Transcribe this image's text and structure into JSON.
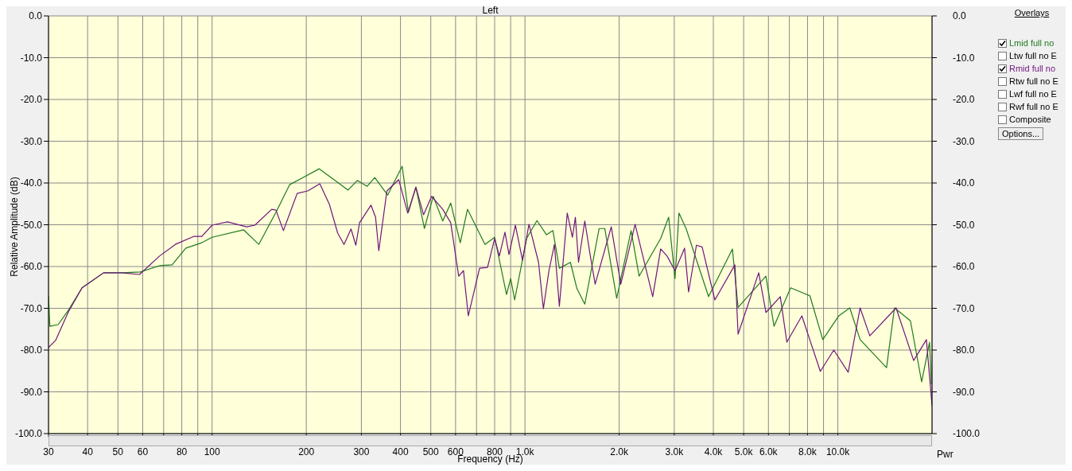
{
  "chart_data": {
    "type": "line",
    "title": "Left",
    "xlabel": "Frequency (Hz)",
    "ylabel": "Relative Amplitude (dB)",
    "y2label": "Pwr",
    "legend_title": "Overlays",
    "legend": "right",
    "log": "x",
    "grid": true,
    "marker": "none",
    "line_style": "solid",
    "xlim": [
      30,
      20000
    ],
    "xticks": [
      30,
      40,
      50,
      60,
      {
        "value": 70,
        "label": null
      },
      80,
      {
        "value": 90,
        "label": null
      },
      100,
      200,
      300,
      400,
      500,
      600,
      {
        "value": 700,
        "label": null
      },
      800,
      {
        "value": 900,
        "label": null
      },
      {
        "value": 1000,
        "label": "1.0k"
      },
      {
        "value": 2000,
        "label": "2.0k"
      },
      {
        "value": 3000,
        "label": "3.0k"
      },
      {
        "value": 4000,
        "label": "4.0k"
      },
      {
        "value": 5000,
        "label": "5.0k"
      },
      {
        "value": 6000,
        "label": "6.0k"
      },
      {
        "value": 7000,
        "label": null
      },
      {
        "value": 8000,
        "label": "8.0k"
      },
      {
        "value": 9000,
        "label": null
      },
      {
        "value": 10000,
        "label": "10.0k"
      }
    ],
    "ylim": [
      -100,
      0
    ],
    "yticks": [
      {
        "value": 0,
        "label": "0.0"
      },
      {
        "value": -10,
        "label": "-10.0"
      },
      {
        "value": -20,
        "label": "-20.0"
      },
      {
        "value": -30,
        "label": "-30.0"
      },
      {
        "value": -40,
        "label": "-40.0"
      },
      {
        "value": -50,
        "label": "-50.0"
      },
      {
        "value": -60,
        "label": "-60.0"
      },
      {
        "value": -70,
        "label": "-70.0"
      },
      {
        "value": -80,
        "label": "-80.0"
      },
      {
        "value": -90,
        "label": "-90.0"
      },
      {
        "value": -100,
        "label": "-100.0"
      }
    ],
    "y2lim": [
      -100,
      0
    ],
    "y2ticks": [
      {
        "value": 0,
        "label": "0.0"
      },
      {
        "value": -10,
        "label": "-10.0"
      },
      {
        "value": -20,
        "label": "-20.0"
      },
      {
        "value": -30,
        "label": "-30.0"
      },
      {
        "value": -40,
        "label": "-40.0"
      },
      {
        "value": -50,
        "label": "-50.0"
      },
      {
        "value": -60,
        "label": "-60.0"
      },
      {
        "value": -70,
        "label": "-70.0"
      },
      {
        "value": -80,
        "label": "-80.0"
      },
      {
        "value": -90,
        "label": "-90.0"
      },
      {
        "value": -100,
        "label": "-100.0"
      }
    ],
    "annotations": [
      "Ltw full no E",
      "Rtw full no E",
      "Lwf full no E",
      "Rwf full no E",
      "Composite",
      "Options..."
    ],
    "series": [
      {
        "name": "Lmid full no",
        "color": "#1f7a1f",
        "x": [
          30,
          30.3,
          32.2,
          34.7,
          38.4,
          45,
          51.5,
          58.9,
          67.9,
          74.5,
          82.4,
          92.7,
          100,
          126,
          141,
          160,
          177,
          195,
          220,
          247,
          272,
          291,
          313,
          331,
          364,
          405,
          424,
          448,
          477,
          509,
          546,
          579,
          621,
          655,
          745,
          800,
          873,
          900,
          927,
          1012,
          1092,
          1172,
          1228,
          1288,
          1397,
          1466,
          1553,
          1726,
          1799,
          1964,
          2183,
          2317,
          2715,
          2879,
          3017,
          3106,
          3273,
          3862,
          4603,
          4799,
          5891,
          6252,
          7066,
          8141,
          8950,
          10070,
          10920,
          11780,
          14310,
          15170,
          17060,
          18530,
          19640,
          19900
        ],
        "values": [
          -67,
          -74.3,
          -73.9,
          -70.5,
          -65.1,
          -61.5,
          -61.5,
          -61.3,
          -59.8,
          -59.6,
          -55.6,
          -54.3,
          -53,
          -51.2,
          -54.7,
          -47,
          -40.4,
          -38.7,
          -36.6,
          -39.4,
          -41.7,
          -39.4,
          -40.8,
          -38.7,
          -42.9,
          -36,
          -47,
          -41,
          -50.9,
          -43.2,
          -49.1,
          -44.8,
          -54.3,
          -46.3,
          -54.7,
          -53,
          -66.7,
          -62.9,
          -68,
          -53.3,
          -49,
          -52.4,
          -51.4,
          -60.4,
          -59,
          -65.3,
          -69,
          -50.9,
          -50.9,
          -67.6,
          -51.4,
          -62.3,
          -53.3,
          -48.2,
          -62.9,
          -47.2,
          -50.9,
          -67.2,
          -55.8,
          -69.8,
          -62.3,
          -74.3,
          -65.1,
          -67,
          -77.5,
          -71.8,
          -69.9,
          -77.5,
          -84.2,
          -69.9,
          -73,
          -87.6,
          -78.1,
          -88.2
        ]
      },
      {
        "name": "Rmid full no",
        "color": "#70167e",
        "x": [
          30,
          31.6,
          34.7,
          38.4,
          45,
          51.5,
          58.6,
          67.9,
          76.3,
          87.3,
          92.7,
          100,
          112,
          129,
          137,
          155,
          160,
          169,
          187,
          202,
          221,
          237,
          252,
          264,
          278,
          288,
          296,
          322,
          333,
          341,
          362,
          395,
          422,
          448,
          474,
          503,
          546,
          579,
          614,
          636,
          659,
          716,
          759,
          800,
          828,
          863,
          889,
          932,
          982,
          1030,
          1105,
          1145,
          1193,
          1242,
          1288,
          1365,
          1418,
          1449,
          1483,
          1553,
          1618,
          1676,
          1887,
          2024,
          2249,
          2560,
          2715,
          2846,
          3017,
          3236,
          3334,
          3532,
          3683,
          4045,
          4688,
          4799,
          5585,
          5891,
          6547,
          6871,
          7674,
          8790,
          9705,
          10790,
          11780,
          12650,
          15350,
          17470,
          19190,
          20000
        ],
        "values": [
          -79.4,
          -77.7,
          -70.9,
          -65.1,
          -61.5,
          -61.5,
          -61.9,
          -57.5,
          -54.7,
          -52.8,
          -52.8,
          -50.1,
          -49.3,
          -50.5,
          -50.1,
          -46.3,
          -46.5,
          -51.4,
          -42.5,
          -41.9,
          -40.2,
          -45.1,
          -52,
          -54.7,
          -51,
          -54.9,
          -49.5,
          -45.3,
          -48.2,
          -56.2,
          -41.9,
          -39.2,
          -47.2,
          -41,
          -47.6,
          -43.2,
          -46.3,
          -49.5,
          -62.3,
          -61,
          -71.8,
          -60.4,
          -60.2,
          -53.3,
          -57.5,
          -51.8,
          -57.1,
          -50.1,
          -58.5,
          -49.9,
          -59,
          -70.1,
          -61,
          -54.7,
          -69.5,
          -47.2,
          -53,
          -48.2,
          -59,
          -49.1,
          -57.5,
          -64.2,
          -50.5,
          -64.2,
          -49.9,
          -67.2,
          -55.8,
          -57.5,
          -61,
          -55.6,
          -66.1,
          -54.9,
          -55.3,
          -68,
          -59.6,
          -76.2,
          -61.5,
          -71,
          -67.2,
          -78.1,
          -71.8,
          -85.1,
          -80,
          -85.3,
          -69.9,
          -76.6,
          -69.9,
          -82.5,
          -77.5,
          -93.3
        ]
      }
    ]
  }
}
